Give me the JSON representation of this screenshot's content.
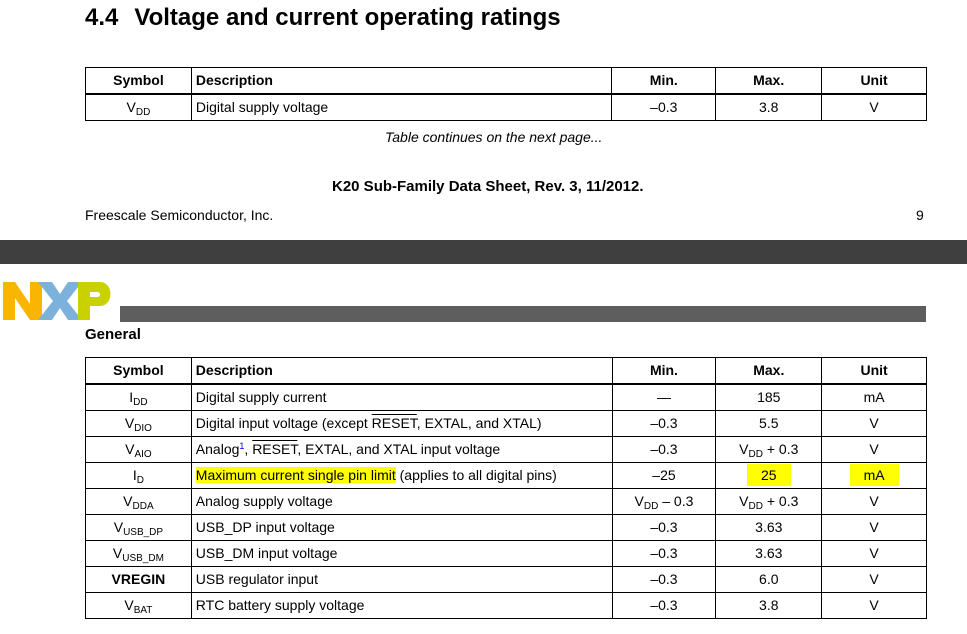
{
  "section": {
    "number": "4.4",
    "title": "Voltage and current operating ratings"
  },
  "columns": {
    "symbol": "Symbol",
    "description": "Description",
    "min": "Min.",
    "max": "Max.",
    "unit": "Unit"
  },
  "top_table_row": {
    "symbol_main": "V",
    "symbol_sub": "DD",
    "description": "Digital supply voltage",
    "min": "–0.3",
    "max": "3.8",
    "unit": "V"
  },
  "continues_note": "Table continues on the next page...",
  "footer": {
    "title": "K20 Sub-Family Data Sheet, Rev. 3, 11/2012.",
    "company": "Freescale Semiconductor, Inc.",
    "page": "9"
  },
  "logo": {
    "text": "NXP",
    "colors": {
      "n": "#f9b500",
      "x": "#7bb1db",
      "p": "#c9d200"
    }
  },
  "next_page_section": "General",
  "rows": [
    {
      "symbol_main": "I",
      "symbol_sub": "DD",
      "description": "Digital supply current",
      "min": "—",
      "max": "185",
      "unit": "mA"
    },
    {
      "symbol_main": "V",
      "symbol_sub": "DIO",
      "desc_a": "Digital input voltage (except ",
      "desc_over": "RESET",
      "desc_b": ", EXTAL, and XTAL)",
      "min": "–0.3",
      "max": "5.5",
      "unit": "V"
    },
    {
      "symbol_main": "V",
      "symbol_sub": "AIO",
      "desc_a": "Analog",
      "desc_sup": "1",
      "desc_b": ", ",
      "desc_over": "RESET",
      "desc_c": ", EXTAL, and XTAL input voltage",
      "min": "–0.3",
      "max_main": "V",
      "max_sub": "DD",
      "max_tail": " + 0.3",
      "unit": "V"
    },
    {
      "symbol_main": "I",
      "symbol_sub": "D",
      "desc_highlight": "Maximum current single pin limit",
      "desc_rest": " (applies to all digital pins)",
      "min": "–25",
      "max": "25",
      "unit": "mA"
    },
    {
      "symbol_main": "V",
      "symbol_sub": "DDA",
      "description": "Analog supply voltage",
      "min_main": "V",
      "min_sub": "DD",
      "min_tail": " – 0.3",
      "max_main": "V",
      "max_sub": "DD",
      "max_tail": " + 0.3",
      "unit": "V"
    },
    {
      "symbol_main": "V",
      "symbol_sub": "USB_DP",
      "description": "USB_DP input voltage",
      "min": "–0.3",
      "max": "3.63",
      "unit": "V"
    },
    {
      "symbol_main": "V",
      "symbol_sub": "USB_DM",
      "description": "USB_DM input voltage",
      "min": "–0.3",
      "max": "3.63",
      "unit": "V"
    },
    {
      "symbol_main": "VREGIN",
      "description": "USB regulator input",
      "min": "–0.3",
      "max": "6.0",
      "unit": "V"
    },
    {
      "symbol_main": "V",
      "symbol_sub": "BAT",
      "description": "RTC battery supply voltage",
      "min": "–0.3",
      "max": "3.8",
      "unit": "V"
    }
  ],
  "highlight_color": "#ffff00"
}
